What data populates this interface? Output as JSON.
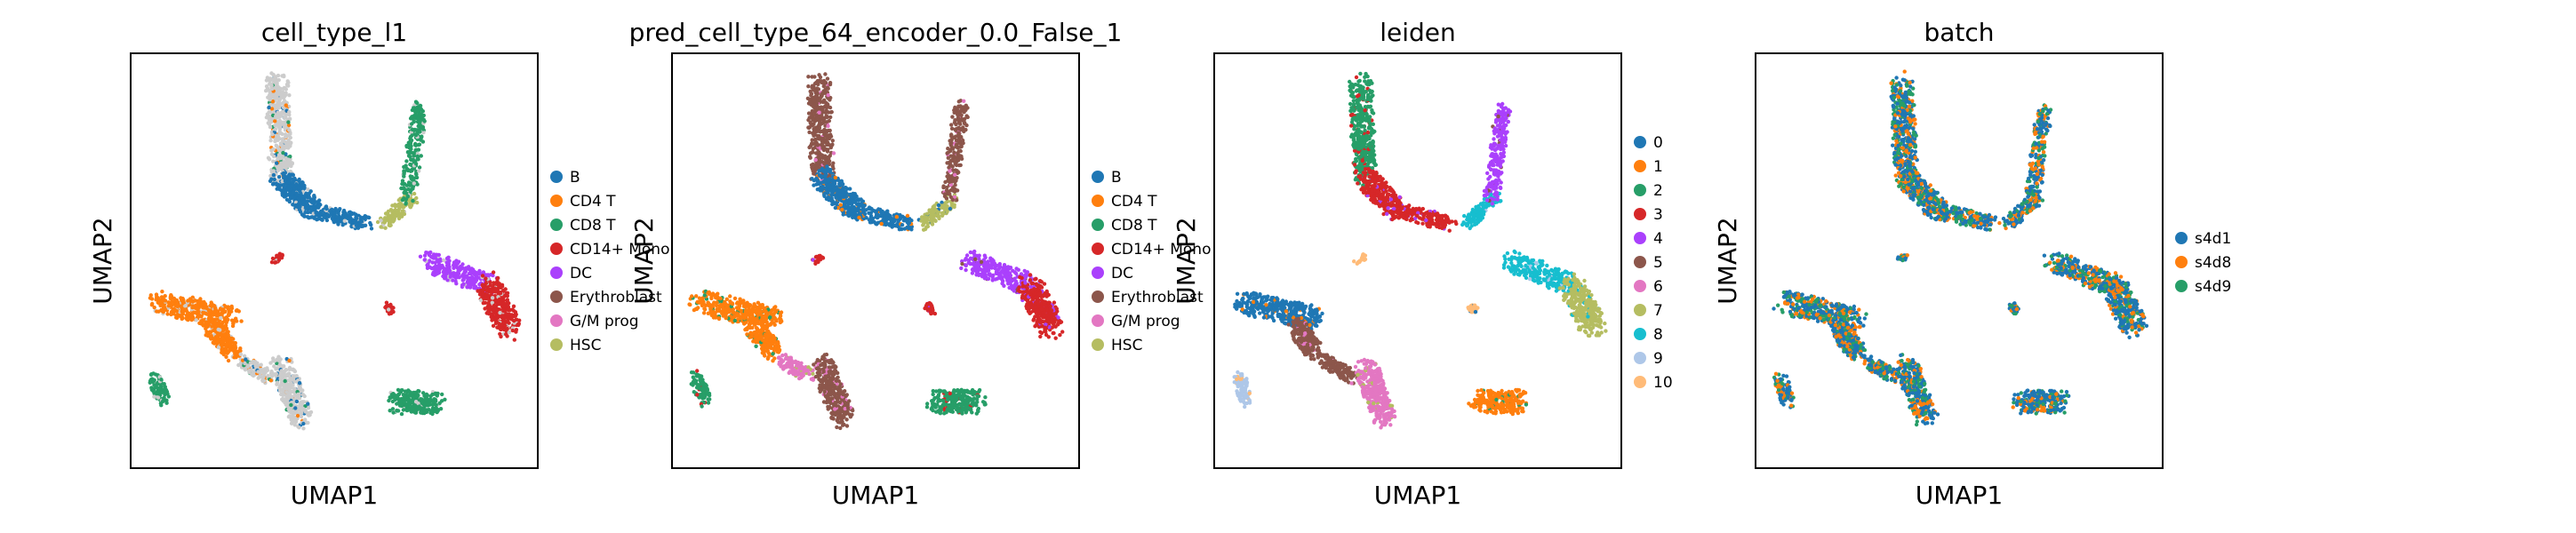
{
  "chart_data": [
    {
      "type": "scatter",
      "title": "cell_type_l1",
      "xlabel": "UMAP1",
      "ylabel": "UMAP2",
      "grid": false,
      "legend": "right",
      "legend_entries": [
        "B",
        "CD4 T",
        "CD8 T",
        "CD14+ Mono",
        "DC",
        "Erythroblast",
        "G/M prog",
        "HSC"
      ],
      "legend_colors": [
        "#1f77b4",
        "#ff7f0e",
        "#279e68",
        "#d62728",
        "#aa40fc",
        "#8c564b",
        "#e377c2",
        "#b5bd61"
      ],
      "unlabeled_color": "#cccccc"
    },
    {
      "type": "scatter",
      "title": "pred_cell_type_64_encoder_0.0_False_1",
      "xlabel": "UMAP1",
      "ylabel": "UMAP2",
      "grid": false,
      "legend": "right",
      "legend_entries": [
        "B",
        "CD4 T",
        "CD8 T",
        "CD14+ Mono",
        "DC",
        "Erythroblast",
        "G/M prog",
        "HSC"
      ],
      "legend_colors": [
        "#1f77b4",
        "#ff7f0e",
        "#279e68",
        "#d62728",
        "#aa40fc",
        "#8c564b",
        "#e377c2",
        "#b5bd61"
      ]
    },
    {
      "type": "scatter",
      "title": "leiden",
      "xlabel": "UMAP1",
      "ylabel": "UMAP2",
      "grid": false,
      "legend": "right",
      "legend_entries": [
        "0",
        "1",
        "2",
        "3",
        "4",
        "5",
        "6",
        "7",
        "8",
        "9",
        "10"
      ],
      "legend_colors": [
        "#1f77b4",
        "#ff7f0e",
        "#279e68",
        "#d62728",
        "#aa40fc",
        "#8c564b",
        "#e377c2",
        "#b5bd61",
        "#17becf",
        "#aec7e8",
        "#ffbb78"
      ]
    },
    {
      "type": "scatter",
      "title": "batch",
      "xlabel": "UMAP1",
      "ylabel": "UMAP2",
      "grid": false,
      "legend": "right",
      "legend_entries": [
        "s4d1",
        "s4d8",
        "s4d9"
      ],
      "legend_colors": [
        "#1f77b4",
        "#ff7f0e",
        "#279e68"
      ]
    }
  ]
}
